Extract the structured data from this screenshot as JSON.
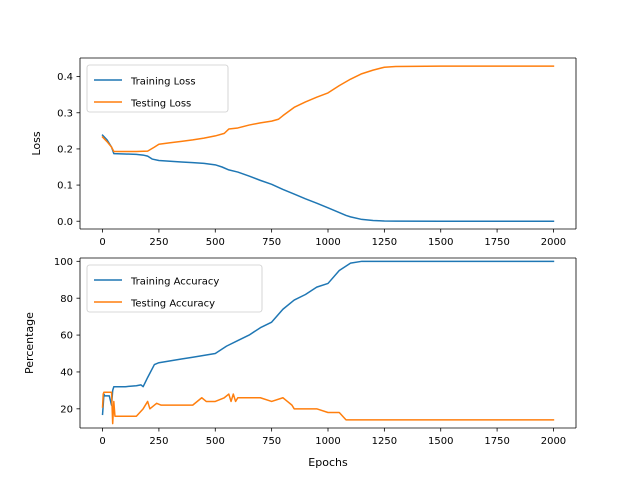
{
  "chart_data": [
    {
      "type": "line",
      "title": "",
      "xlabel": "",
      "ylabel": "Loss",
      "xlim": [
        -100,
        2100
      ],
      "ylim": [
        -0.0215,
        0.4515
      ],
      "xticks": [
        0,
        250,
        500,
        750,
        1000,
        1250,
        1500,
        1750,
        2000
      ],
      "yticks": [
        0.0,
        0.1,
        0.2,
        0.3,
        0.4
      ],
      "ytick_labels": [
        "0.0",
        "0.1",
        "0.2",
        "0.3",
        "0.4"
      ],
      "grid": false,
      "legend_position": "upper-left",
      "series": [
        {
          "name": "Training Loss",
          "color": "#1f77b4",
          "x": [
            0,
            20,
            40,
            50,
            100,
            150,
            180,
            200,
            220,
            250,
            300,
            350,
            400,
            450,
            500,
            530,
            560,
            600,
            650,
            700,
            750,
            800,
            850,
            900,
            950,
            1000,
            1050,
            1080,
            1100,
            1150,
            1200,
            1250,
            1300,
            1500,
            1750,
            2000
          ],
          "values": [
            0.238,
            0.225,
            0.205,
            0.187,
            0.186,
            0.185,
            0.183,
            0.18,
            0.172,
            0.168,
            0.166,
            0.164,
            0.162,
            0.16,
            0.156,
            0.15,
            0.142,
            0.136,
            0.125,
            0.113,
            0.102,
            0.088,
            0.075,
            0.062,
            0.05,
            0.037,
            0.024,
            0.016,
            0.012,
            0.005,
            0.002,
            0.0005,
            0.0002,
            0.0001,
            0.0001,
            0.0001
          ]
        },
        {
          "name": "Testing Loss",
          "color": "#ff7f0e",
          "x": [
            0,
            20,
            40,
            50,
            100,
            150,
            200,
            230,
            250,
            300,
            350,
            400,
            450,
            500,
            540,
            560,
            600,
            650,
            700,
            750,
            780,
            800,
            850,
            900,
            950,
            1000,
            1050,
            1100,
            1150,
            1200,
            1250,
            1300,
            1500,
            1750,
            2000
          ],
          "values": [
            0.233,
            0.22,
            0.205,
            0.193,
            0.193,
            0.193,
            0.194,
            0.205,
            0.213,
            0.217,
            0.221,
            0.225,
            0.23,
            0.236,
            0.243,
            0.255,
            0.258,
            0.266,
            0.272,
            0.277,
            0.282,
            0.292,
            0.315,
            0.33,
            0.343,
            0.355,
            0.375,
            0.393,
            0.408,
            0.418,
            0.426,
            0.428,
            0.429,
            0.429,
            0.429
          ]
        }
      ]
    },
    {
      "type": "line",
      "title": "",
      "xlabel": "Epochs",
      "ylabel": "Percentage",
      "xlim": [
        -100,
        2100
      ],
      "ylim": [
        9.6,
        101.8
      ],
      "xticks": [
        0,
        250,
        500,
        750,
        1000,
        1250,
        1500,
        1750,
        2000
      ],
      "yticks": [
        20,
        40,
        60,
        80,
        100
      ],
      "grid": false,
      "legend_position": "upper-left",
      "series": [
        {
          "name": "Training Accuracy",
          "color": "#1f77b4",
          "x": [
            0,
            3,
            6,
            10,
            30,
            40,
            45,
            50,
            100,
            150,
            170,
            180,
            200,
            230,
            250,
            300,
            350,
            400,
            450,
            500,
            550,
            600,
            650,
            700,
            750,
            800,
            850,
            900,
            950,
            1000,
            1050,
            1100,
            1150,
            1200,
            1500,
            1750,
            2000
          ],
          "values": [
            17,
            22,
            28,
            27,
            27,
            22,
            30,
            32,
            32,
            32.5,
            33,
            32,
            37,
            44,
            45,
            46,
            47,
            48,
            49,
            50,
            54,
            57,
            60,
            64,
            67,
            74,
            79,
            82,
            86,
            88,
            95,
            99,
            100,
            100,
            100,
            100,
            100
          ]
        },
        {
          "name": "Testing Accuracy",
          "color": "#ff7f0e",
          "x": [
            0,
            3,
            6,
            40,
            45,
            50,
            55,
            60,
            150,
            180,
            200,
            210,
            240,
            260,
            300,
            400,
            440,
            460,
            500,
            540,
            560,
            570,
            580,
            590,
            600,
            650,
            700,
            750,
            800,
            820,
            840,
            850,
            950,
            1000,
            1050,
            1080,
            1500,
            1750,
            2000
          ],
          "values": [
            21,
            28,
            29,
            29,
            12,
            24,
            16,
            16,
            16,
            20,
            24,
            20,
            23,
            22,
            22,
            22,
            26,
            24,
            24,
            26,
            28,
            24,
            28,
            24,
            26,
            26,
            26,
            24,
            26,
            24,
            22,
            20,
            20,
            18,
            18,
            14,
            14,
            14,
            14
          ]
        }
      ]
    }
  ]
}
